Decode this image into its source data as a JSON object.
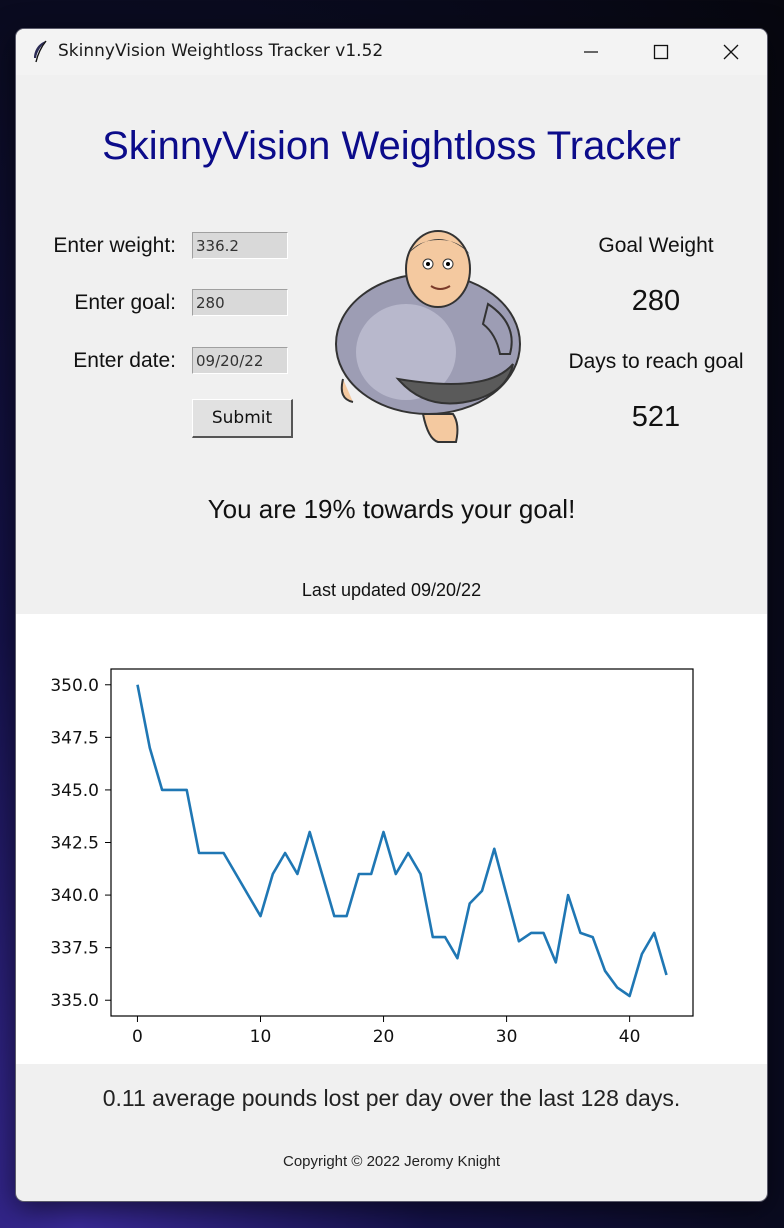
{
  "window": {
    "title": "SkinnyVision Weightloss Tracker v1.52"
  },
  "header": {
    "title": "SkinnyVision Weightloss Tracker"
  },
  "form": {
    "weight_label": "Enter weight:",
    "weight_value": "336.2",
    "goal_label": "Enter goal:",
    "goal_value": "280",
    "date_label": "Enter date:",
    "date_value": "09/20/22",
    "submit_label": "Submit"
  },
  "stats": {
    "goal_weight_label": "Goal Weight",
    "goal_weight_value": "280",
    "days_label": "Days to reach goal",
    "days_value": "521"
  },
  "progress_text": "You are 19% towards your goal!",
  "last_updated": "Last updated 09/20/22",
  "average_text": "0.11 average pounds lost per day over the last 128 days.",
  "copyright": "Copyright © 2022 Jeromy Knight",
  "icons": {
    "app": "feather-icon",
    "minimize": "minimize-icon",
    "maximize": "maximize-icon",
    "close": "close-icon",
    "mascot": "overweight-man-cartoon"
  },
  "colors": {
    "title": "#0b0b8a",
    "line": "#1f77b4"
  },
  "chart_data": {
    "type": "line",
    "x": [
      0,
      1,
      2,
      3,
      4,
      5,
      6,
      7,
      8,
      9,
      10,
      11,
      12,
      13,
      14,
      15,
      16,
      17,
      18,
      19,
      20,
      21,
      22,
      23,
      24,
      25,
      26,
      27,
      28,
      29,
      30,
      31,
      32,
      33,
      34,
      35,
      36,
      37,
      38,
      39,
      40,
      41,
      42,
      43
    ],
    "series": [
      {
        "values": [
          350.0,
          347.0,
          345.0,
          345.0,
          345.0,
          342.0,
          342.0,
          342.0,
          341.0,
          340.0,
          339.0,
          341.0,
          342.0,
          341.0,
          343.0,
          341.0,
          339.0,
          339.0,
          341.0,
          341.0,
          343.0,
          341.0,
          342.0,
          341.0,
          338.0,
          338.0,
          337.0,
          339.6,
          340.2,
          342.2,
          340.0,
          337.8,
          338.2,
          338.2,
          336.8,
          340.0,
          338.2,
          338.0,
          336.4,
          335.6,
          335.2,
          337.2,
          338.2,
          336.2
        ]
      }
    ],
    "xticks": [
      "0",
      "10",
      "20",
      "30",
      "40"
    ],
    "yticks": [
      "350.0",
      "347.5",
      "345.0",
      "342.5",
      "340.0",
      "337.5",
      "335.0"
    ],
    "xlim": [
      -2.15,
      45.15
    ],
    "ylim": [
      334.25,
      350.75
    ],
    "title": "",
    "xlabel": "",
    "ylabel": "",
    "grid": false
  }
}
